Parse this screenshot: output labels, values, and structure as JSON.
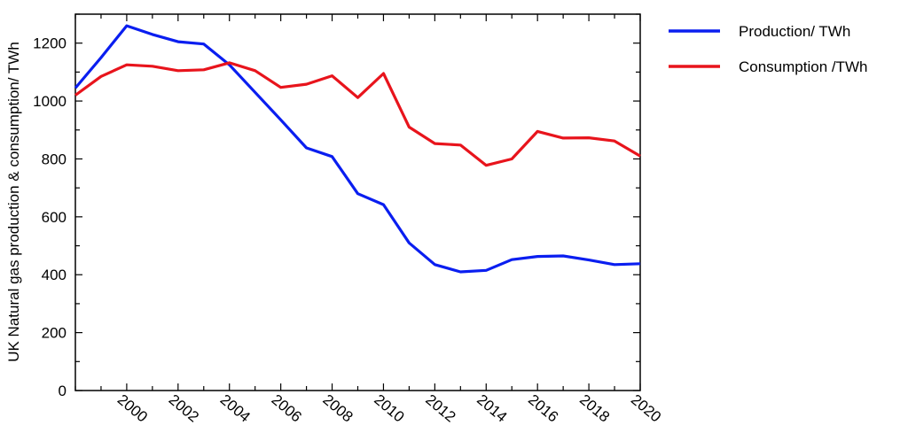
{
  "chart_data": {
    "type": "line",
    "ylabel": "UK Natural gas production & consumption/ TWh",
    "xlabel": "",
    "xlim": [
      1998,
      2020
    ],
    "ylim": [
      0,
      1300
    ],
    "x_ticks": [
      2000,
      2002,
      2004,
      2006,
      2008,
      2010,
      2012,
      2014,
      2016,
      2018,
      2020
    ],
    "x_tick_labels": [
      "2000",
      "2002",
      "2004",
      "2006",
      "2008",
      "2010",
      "2012",
      "2014",
      "2016",
      "2018",
      "2020"
    ],
    "y_ticks": [
      0,
      200,
      400,
      600,
      800,
      1000,
      1200
    ],
    "y_tick_labels": [
      "0",
      "200",
      "400",
      "600",
      "800",
      "1000",
      "1200"
    ],
    "grid": false,
    "legend_position": "right",
    "x": [
      1998,
      1999,
      2000,
      2001,
      2002,
      2003,
      2004,
      2005,
      2006,
      2007,
      2008,
      2009,
      2010,
      2011,
      2012,
      2013,
      2014,
      2015,
      2016,
      2017,
      2018,
      2019,
      2020
    ],
    "series": [
      {
        "name": "Production/ TWh",
        "color": "#0a1ef0",
        "values": [
          1045,
          1150,
          1260,
          1230,
          1205,
          1197,
          1125,
          1030,
          935,
          838,
          808,
          680,
          642,
          510,
          435,
          410,
          415,
          452,
          463,
          465,
          451,
          435,
          438
        ]
      },
      {
        "name": "Consumption /TWh",
        "color": "#e8141c",
        "values": [
          1020,
          1085,
          1125,
          1120,
          1105,
          1108,
          1132,
          1105,
          1047,
          1058,
          1087,
          1012,
          1095,
          910,
          853,
          848,
          778,
          800,
          895,
          872,
          873,
          862,
          810
        ]
      }
    ]
  }
}
